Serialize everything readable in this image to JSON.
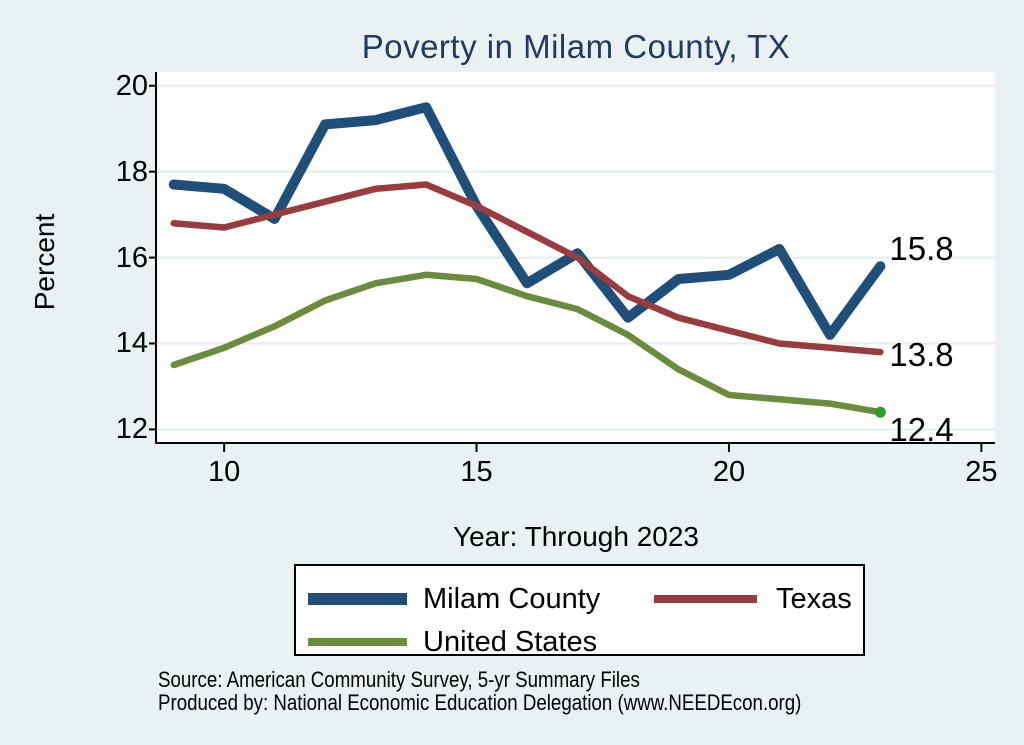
{
  "chart_data": {
    "type": "line",
    "title": "Poverty in Milam County, TX",
    "xlabel": "Year: Through 2023",
    "ylabel": "Percent",
    "x": [
      9,
      10,
      11,
      12,
      13,
      14,
      15,
      16,
      17,
      18,
      19,
      20,
      21,
      22,
      23
    ],
    "series": [
      {
        "name": "Milam County",
        "color": "#1f4e79",
        "end_label": "15.8",
        "values": [
          17.7,
          17.6,
          16.9,
          19.1,
          19.2,
          19.5,
          17.2,
          15.4,
          16.1,
          14.6,
          15.5,
          15.6,
          16.2,
          14.2,
          15.8
        ]
      },
      {
        "name": "Texas",
        "color": "#9a3b3f",
        "end_label": "13.8",
        "values": [
          16.8,
          16.7,
          17.0,
          17.3,
          17.6,
          17.7,
          17.2,
          16.6,
          16.0,
          15.1,
          14.6,
          14.3,
          14.0,
          13.9,
          13.8
        ]
      },
      {
        "name": "United States",
        "color": "#6a8c3c",
        "end_label": "12.4",
        "end_marker_color": "#2aa02a",
        "values": [
          13.5,
          13.9,
          14.4,
          15.0,
          15.4,
          15.6,
          15.5,
          15.1,
          14.8,
          14.2,
          13.4,
          12.8,
          12.7,
          12.6,
          12.4
        ]
      }
    ],
    "xticks": [
      10,
      15,
      20,
      25
    ],
    "yticks": [
      20,
      18,
      16,
      14,
      12
    ],
    "x_range": [
      8.67,
      25.27
    ],
    "y_range": [
      11.66,
      20.32
    ],
    "grid": "horizontal",
    "legend_position": "bottom"
  },
  "footer": {
    "line1": "Source: American Community Survey, 5-yr Summary Files",
    "line2": "Produced by: National Economic Education Delegation (www.NEEDEcon.org)"
  },
  "colors": {
    "background": "#eaf1f3",
    "plot_background": "#ffffff",
    "gridline": "#e4eef1",
    "axis": "#000000",
    "title": "#233864",
    "text": "#000000"
  }
}
